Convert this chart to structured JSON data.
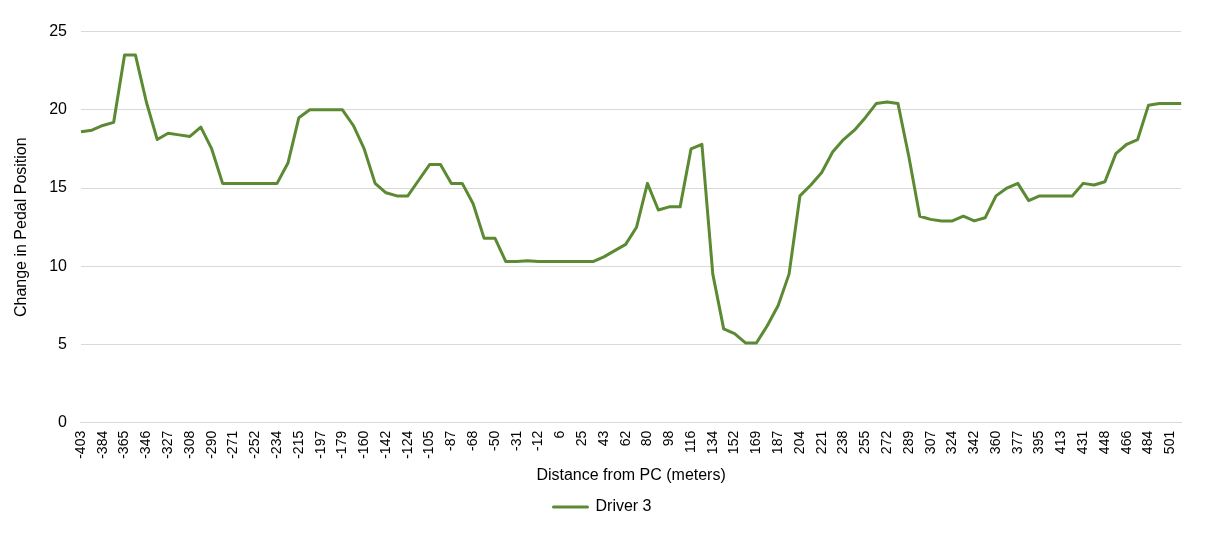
{
  "chart_data": {
    "type": "line",
    "xlabel": "Distance from PC (meters)",
    "ylabel": "Change in Pedal Position",
    "categories": [
      "-403",
      null,
      "-384",
      null,
      "-365",
      null,
      "-346",
      null,
      "-327",
      null,
      "-308",
      null,
      "-290",
      null,
      "-271",
      null,
      "-252",
      null,
      "-234",
      null,
      "-215",
      null,
      "-197",
      null,
      "-179",
      null,
      "-160",
      null,
      "-142",
      null,
      "-124",
      null,
      "-105",
      null,
      "-87",
      null,
      "-68",
      null,
      "-50",
      null,
      "-31",
      null,
      "-12",
      null,
      "6",
      null,
      "25",
      null,
      "43",
      null,
      "62",
      null,
      "80",
      null,
      "98",
      null,
      "116",
      null,
      "134",
      null,
      "152",
      null,
      "169",
      null,
      "187",
      null,
      "204",
      null,
      "221",
      null,
      "238",
      null,
      "255",
      null,
      "272",
      null,
      "289",
      null,
      "307",
      null,
      "324",
      null,
      "342",
      null,
      "360",
      null,
      "377",
      null,
      "395",
      null,
      "413",
      null,
      "431",
      null,
      "448",
      null,
      "466",
      null,
      "484",
      null,
      "501",
      null
    ],
    "series": [
      {
        "name": "Driver 3",
        "color": "#5b8a32",
        "values": [
          18.6,
          18.7,
          19.0,
          19.2,
          23.5,
          23.5,
          20.5,
          18.1,
          18.5,
          18.4,
          18.3,
          18.9,
          17.5,
          15.3,
          15.3,
          15.3,
          15.3,
          15.3,
          15.3,
          16.6,
          19.5,
          20.0,
          20.0,
          20.0,
          20.0,
          19.0,
          17.5,
          15.3,
          14.7,
          14.5,
          14.5,
          15.5,
          16.5,
          16.5,
          15.3,
          15.3,
          14.0,
          11.8,
          11.8,
          10.3,
          10.3,
          10.35,
          10.3,
          10.3,
          10.3,
          10.3,
          10.3,
          10.3,
          10.6,
          11.0,
          11.4,
          12.5,
          15.3,
          13.6,
          13.8,
          13.8,
          17.5,
          17.8,
          9.5,
          6.0,
          5.7,
          5.1,
          5.1,
          6.2,
          7.5,
          9.5,
          14.5,
          15.2,
          16.0,
          17.3,
          18.1,
          18.7,
          19.5,
          20.4,
          20.5,
          20.4,
          17.0,
          13.2,
          13.0,
          12.9,
          12.9,
          13.2,
          12.9,
          13.1,
          14.5,
          15.0,
          15.3,
          14.2,
          14.5,
          14.5,
          14.5,
          14.5,
          15.3,
          15.2,
          15.4,
          17.2,
          17.8,
          18.1,
          20.3,
          20.4,
          20.4,
          20.4
        ]
      }
    ],
    "ylim": [
      0,
      25
    ],
    "yticks": [
      0,
      5,
      10,
      15,
      20,
      25
    ],
    "grid": "y",
    "legend": "bottom",
    "marker": "none",
    "line_style": "solid"
  }
}
